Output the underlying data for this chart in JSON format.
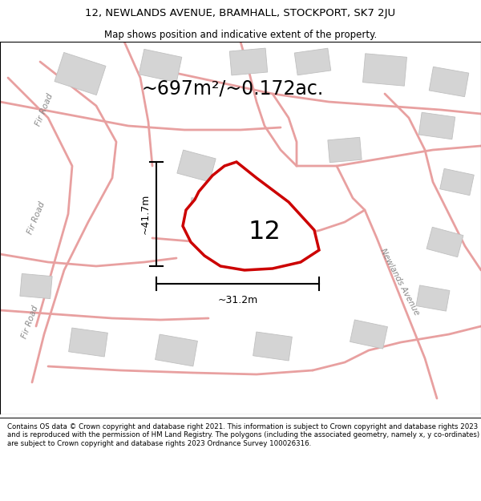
{
  "title_line1": "12, NEWLANDS AVENUE, BRAMHALL, STOCKPORT, SK7 2JU",
  "title_line2": "Map shows position and indicative extent of the property.",
  "area_label": "~697m²/~0.172ac.",
  "property_number": "12",
  "dim_vertical": "~41.7m",
  "dim_horizontal": "~31.2m",
  "footer_text": "Contains OS data © Crown copyright and database right 2021. This information is subject to Crown copyright and database rights 2023 and is reproduced with the permission of HM Land Registry. The polygons (including the associated geometry, namely x, y co-ordinates) are subject to Crown copyright and database rights 2023 Ordnance Survey 100026316.",
  "map_bg": "#f0efef",
  "road_color": "#e8a0a0",
  "building_color": "#d4d4d4",
  "building_edge": "#c0c0c0",
  "property_edge": "#cc0000",
  "property_fill": "#ffffff",
  "road_label_color": "#888888",
  "title_fontsize": 9.5,
  "subtitle_fontsize": 8.5,
  "area_fontsize": 17,
  "number_fontsize": 22,
  "dim_fontsize": 9,
  "road_label_fontsize": 7.5,
  "footer_fontsize": 6.2
}
